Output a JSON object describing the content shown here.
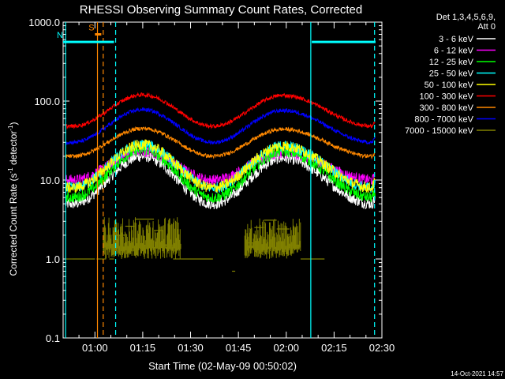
{
  "chart_data": {
    "type": "line",
    "title": "RHESSI Observing Summary Count Rates, Corrected",
    "xlabel": "Start Time (02-May-09 00:50:02)",
    "ylabel": "Corrected Count Rate (s",
    "ylabel_sup": "-1",
    "ylabel_rest": " detector",
    "ylabel_sup2": "-1",
    "ylabel_end": ")",
    "y_scale": "log",
    "ylim": [
      0.1,
      1000
    ],
    "xlim": [
      "00:50:02",
      "02:30:00"
    ],
    "x_tick_labels": [
      "01:00",
      "01:15",
      "01:30",
      "01:45",
      "02:00",
      "02:15",
      "02:30"
    ],
    "x_tick_minutes": [
      60,
      75,
      90,
      105,
      120,
      135,
      150
    ],
    "x_range_minutes": [
      50.03,
      150
    ],
    "y_tick_labels": [
      "1000.0",
      "100.0",
      "10.0",
      "1.0",
      "0.1"
    ],
    "y_tick_values": [
      1000,
      100,
      10,
      1,
      0.1
    ],
    "legend_header": [
      "Det 1,3,4,5,6,9,",
      "Att 0"
    ],
    "legend_placement": "right",
    "series": [
      {
        "name": "3 - 6 keV",
        "color": "#ffffff",
        "valley_level": 5,
        "peak_levels": [
          20,
          19
        ],
        "valley_end": 9
      },
      {
        "name": "6 - 12 keV",
        "color": "#ff00ff",
        "valley_level": 10,
        "peak_levels": [
          23,
          22
        ],
        "valley_end": 13
      },
      {
        "name": "12 - 25 keV",
        "color": "#00ff00",
        "valley_level": 6,
        "peak_levels": [
          24,
          23
        ],
        "valley_end": 8
      },
      {
        "name": "25 - 50 keV",
        "color": "#00ffff",
        "valley_level": 8,
        "peak_levels": [
          28,
          27
        ],
        "valley_end": 16
      },
      {
        "name": "50 - 100 keV",
        "color": "#ffff00",
        "valley_level": 8,
        "peak_levels": [
          28,
          27
        ],
        "valley_end": 16
      },
      {
        "name": "100 - 300 keV",
        "color": "#ff0000",
        "valley_level": 48,
        "peak_levels": [
          120,
          118
        ],
        "valley_end": 70
      },
      {
        "name": "300 - 800 keV",
        "color": "#ff8800",
        "valley_level": 20,
        "peak_levels": [
          45,
          44
        ],
        "valley_end": 28
      },
      {
        "name": "800 - 7000 keV",
        "color": "#0000ff",
        "valley_level": 30,
        "peak_levels": [
          78,
          76
        ],
        "valley_end": 48
      },
      {
        "name": "7000 - 15000 keV",
        "color": "#808000",
        "valley_level": 1,
        "peak_levels": [
          3,
          3
        ],
        "valley_end": 1
      }
    ],
    "peak_times_minutes": [
      75,
      119
    ],
    "valley_times_minutes": [
      53,
      97,
      147
    ],
    "markers": [
      {
        "label": "S",
        "color": "#ff8800",
        "style": "bar",
        "x_minutes": [
          60,
          62
        ],
        "y_value": 700
      },
      {
        "label": "N",
        "color": "#00ffff",
        "style": "bar",
        "x_minutes": [
          50.03,
          66
        ],
        "y_value": 560
      },
      {
        "label": "",
        "color": "#00ffff",
        "style": "bar",
        "x_minutes": [
          128,
          148
        ],
        "y_value": 560
      }
    ],
    "vlines": [
      {
        "x_minutes": 50.8,
        "color": "#00ffff",
        "dash": false
      },
      {
        "x_minutes": 60.8,
        "color": "#ff8800",
        "dash": false
      },
      {
        "x_minutes": 62.6,
        "color": "#ff8800",
        "dash": true
      },
      {
        "x_minutes": 66.5,
        "color": "#00ffff",
        "dash": true
      },
      {
        "x_minutes": 127.7,
        "color": "#00ffff",
        "dash": false
      },
      {
        "x_minutes": 147.7,
        "color": "#00ffff",
        "dash": true
      }
    ]
  },
  "footer_date": "14-Oct-2021 14:57"
}
